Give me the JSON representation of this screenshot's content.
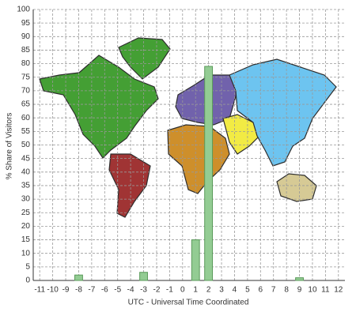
{
  "chart_data": {
    "type": "bar",
    "x_label": "UTC - Universal Time Coordinated",
    "y_label": "% Share of Visitors",
    "categories": [
      "-11",
      "-10",
      "-9",
      "-8",
      "-7",
      "-6",
      "-5",
      "-4",
      "-3",
      "-2",
      "-1",
      "0",
      "1",
      "2",
      "3",
      "4",
      "5",
      "6",
      "7",
      "8",
      "9",
      "10",
      "11",
      "12"
    ],
    "values": [
      0,
      0,
      0,
      2,
      0,
      0,
      0,
      0,
      3,
      0,
      0,
      0,
      15,
      79,
      0,
      0,
      0,
      0,
      0,
      0,
      1,
      0,
      0,
      0
    ],
    "color": "#93cc93",
    "ylim": [
      0,
      100
    ],
    "yticks": [
      0,
      5,
      10,
      15,
      20,
      25,
      30,
      35,
      40,
      45,
      50,
      55,
      60,
      65,
      70,
      75,
      80,
      85,
      90,
      95,
      100
    ],
    "grid": true
  }
}
